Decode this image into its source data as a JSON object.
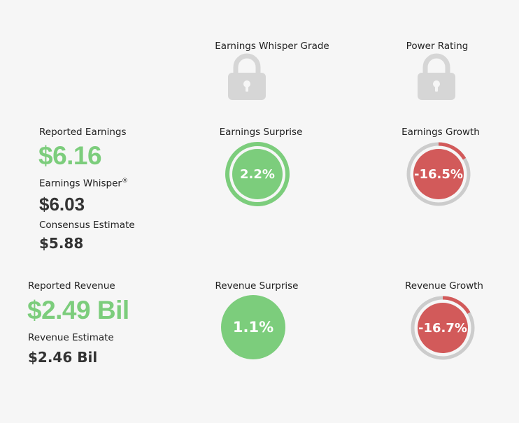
{
  "grades": {
    "whisper_grade_label": "Earnings Whisper Grade",
    "power_rating_label": "Power Rating",
    "lock_icon": "lock-icon"
  },
  "earnings": {
    "reported_label": "Reported Earnings",
    "reported_value": "$6.16",
    "whisper_label": "Earnings Whisper",
    "whisper_mark": "®",
    "whisper_value": "$6.03",
    "consensus_label": "Consensus Estimate",
    "consensus_value": "$5.88",
    "surprise_label": "Earnings Surprise",
    "surprise_value": "2.2%",
    "surprise_pct": 2.2,
    "growth_label": "Earnings Growth",
    "growth_value": "-16.5%",
    "growth_pct": -16.5
  },
  "revenue": {
    "reported_label": "Reported Revenue",
    "reported_value": "$2.49 Bil",
    "estimate_label": "Revenue Estimate",
    "estimate_value": "$2.46 Bil",
    "surprise_label": "Revenue Surprise",
    "surprise_value": "1.1%",
    "surprise_pct": 1.1,
    "growth_label": "Revenue Growth",
    "growth_value": "-16.7%",
    "growth_pct": -16.7
  },
  "colors": {
    "positive": "#7ccd7c",
    "negative": "#d25a5a",
    "track": "#cccccc",
    "lock": "#d6d6d6"
  }
}
